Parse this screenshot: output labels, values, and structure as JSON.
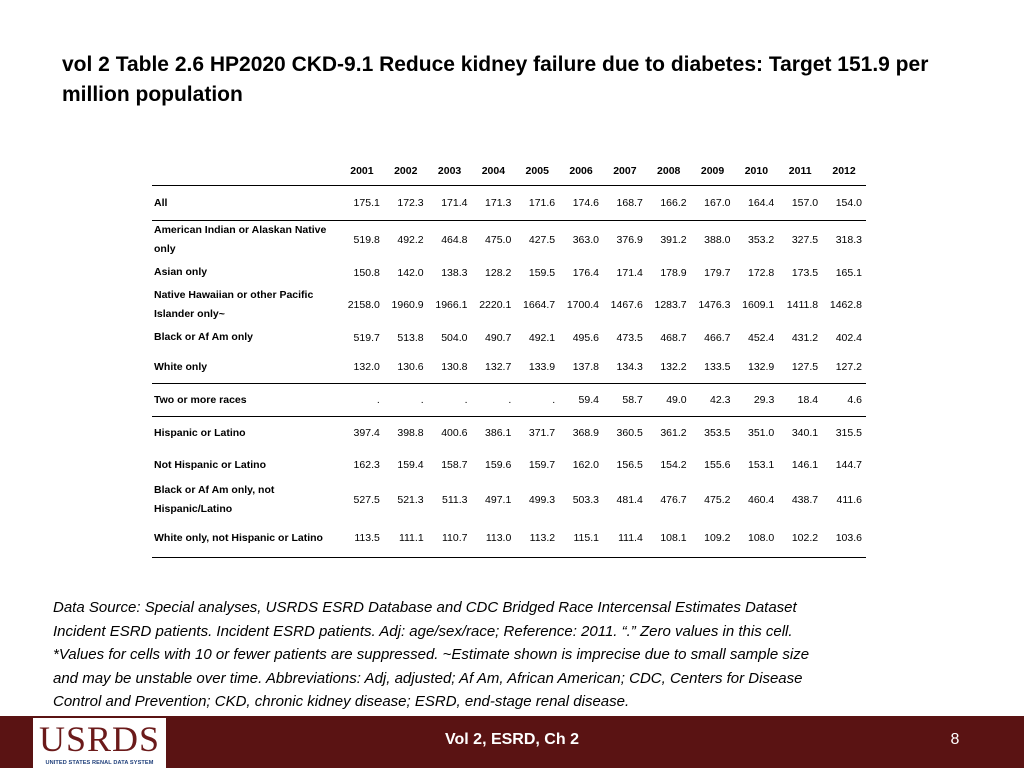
{
  "slide": {
    "title": "vol 2 Table 2.6  HP2020 CKD-9.1 Reduce kidney failure due to diabetes: Target 151.9 per million population"
  },
  "table": {
    "years": [
      "2001",
      "2002",
      "2003",
      "2004",
      "2005",
      "2006",
      "2007",
      "2008",
      "2009",
      "2010",
      "2011",
      "2012"
    ],
    "rows": [
      {
        "label": "All",
        "values": [
          "175.1",
          "172.3",
          "171.4",
          "171.3",
          "171.6",
          "174.6",
          "168.7",
          "166.2",
          "167.0",
          "164.4",
          "157.0",
          "154.0"
        ]
      },
      {
        "label": "American Indian or Alaskan Native only",
        "values": [
          "519.8",
          "492.2",
          "464.8",
          "475.0",
          "427.5",
          "363.0",
          "376.9",
          "391.2",
          "388.0",
          "353.2",
          "327.5",
          "318.3"
        ]
      },
      {
        "label": "Asian only",
        "values": [
          "150.8",
          "142.0",
          "138.3",
          "128.2",
          "159.5",
          "176.4",
          "171.4",
          "178.9",
          "179.7",
          "172.8",
          "173.5",
          "165.1"
        ]
      },
      {
        "label": "Native Hawaiian or other Pacific Islander only~",
        "values": [
          "2158.0",
          "1960.9",
          "1966.1",
          "2220.1",
          "1664.7",
          "1700.4",
          "1467.6",
          "1283.7",
          "1476.3",
          "1609.1",
          "1411.8",
          "1462.8"
        ]
      },
      {
        "label": "Black or Af Am only",
        "values": [
          "519.7",
          "513.8",
          "504.0",
          "490.7",
          "492.1",
          "495.6",
          "473.5",
          "468.7",
          "466.7",
          "452.4",
          "431.2",
          "402.4"
        ]
      },
      {
        "label": "White only",
        "values": [
          "132.0",
          "130.6",
          "130.8",
          "132.7",
          "133.9",
          "137.8",
          "134.3",
          "132.2",
          "133.5",
          "132.9",
          "127.5",
          "127.2"
        ]
      },
      {
        "label": "Two or more races",
        "values": [
          ".",
          ".",
          ".",
          ".",
          ".",
          "59.4",
          "58.7",
          "49.0",
          "42.3",
          "29.3",
          "18.4",
          "4.6"
        ]
      },
      {
        "label": "Hispanic or Latino",
        "values": [
          "397.4",
          "398.8",
          "400.6",
          "386.1",
          "371.7",
          "368.9",
          "360.5",
          "361.2",
          "353.5",
          "351.0",
          "340.1",
          "315.5"
        ]
      },
      {
        "label": "Not Hispanic or Latino",
        "values": [
          "162.3",
          "159.4",
          "158.7",
          "159.6",
          "159.7",
          "162.0",
          "156.5",
          "154.2",
          "155.6",
          "153.1",
          "146.1",
          "144.7"
        ]
      },
      {
        "label": "Black or Af Am only, not Hispanic/Latino",
        "values": [
          "527.5",
          "521.3",
          "511.3",
          "497.1",
          "499.3",
          "503.3",
          "481.4",
          "476.7",
          "475.2",
          "460.4",
          "438.7",
          "411.6"
        ]
      },
      {
        "label": "White only, not Hispanic or Latino",
        "values": [
          "113.5",
          "111.1",
          "110.7",
          "113.0",
          "113.2",
          "115.1",
          "111.4",
          "108.1",
          "109.2",
          "108.0",
          "102.2",
          "103.6"
        ]
      }
    ]
  },
  "note": {
    "line1": "Data Source: Special analyses, USRDS ESRD Database and CDC Bridged Race Intercensal Estimates Dataset",
    "line2": "Incident ESRD patients. Incident ESRD patients. Adj: age/sex/race; Reference: 2011. “.” Zero values in this cell.",
    "line3": "*Values for cells with 10 or fewer patients are suppressed. ~Estimate shown is imprecise due to small sample size",
    "line4": "and may be unstable over time. Abbreviations: Adj, adjusted; Af Am, African American; CDC, Centers for Disease",
    "line5": "Control and Prevention; CKD, chronic kidney disease; ESRD, end-stage renal disease."
  },
  "footer": {
    "logo_text": "USRDS",
    "logo_subtitle": "UNITED STATES RENAL DATA SYSTEM",
    "center_text": "Vol 2, ESRD, Ch 2",
    "page_number": "8"
  },
  "colors": {
    "footer_bg": "#5a1313",
    "logo_red": "#6b1a1a",
    "logo_blue": "#1f3f7a"
  }
}
